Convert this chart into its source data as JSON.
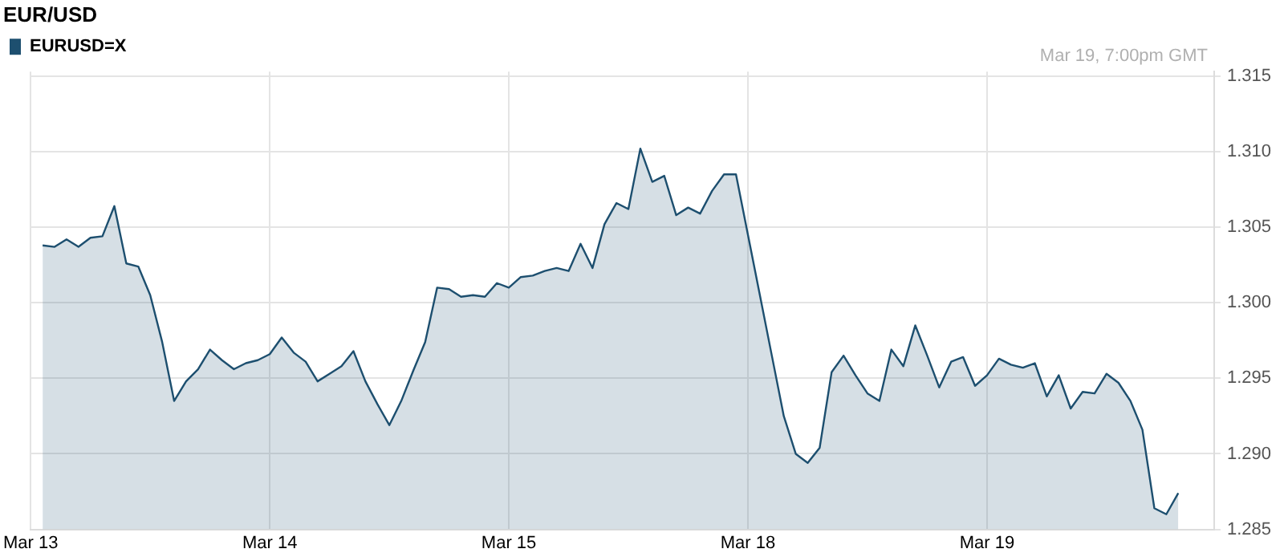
{
  "chart_data": {
    "type": "area",
    "title": "EUR/USD",
    "annotations": [
      "Mar 19, 7:00pm GMT"
    ],
    "legend": "top left",
    "grid": true,
    "marker": "none",
    "categories": [
      "Mar 13",
      null,
      null,
      null,
      null,
      null,
      null,
      null,
      null,
      null,
      null,
      null,
      null,
      null,
      null,
      null,
      null,
      null,
      null,
      null,
      "Mar 14",
      null,
      null,
      null,
      null,
      null,
      null,
      null,
      null,
      null,
      null,
      null,
      null,
      null,
      null,
      null,
      null,
      null,
      null,
      null,
      "Mar 15",
      null,
      null,
      null,
      null,
      null,
      null,
      null,
      null,
      null,
      null,
      null,
      null,
      null,
      null,
      null,
      null,
      null,
      null,
      null,
      "Mar 18",
      null,
      null,
      null,
      null,
      null,
      null,
      null,
      null,
      null,
      null,
      null,
      null,
      null,
      null,
      null,
      null,
      null,
      null,
      null,
      "Mar 19",
      null,
      null,
      null,
      null,
      null,
      null,
      null,
      null,
      null,
      null,
      null,
      null,
      null,
      null,
      null,
      null,
      null,
      null,
      null
    ],
    "ylim": [
      1.285,
      1.3153
    ],
    "yticks": [
      {
        "value": 1.285,
        "label": "1.285"
      },
      {
        "value": 1.29,
        "label": "1.290"
      },
      {
        "value": 1.295,
        "label": "1.295"
      },
      {
        "value": 1.3,
        "label": "1.300"
      },
      {
        "value": 1.305,
        "label": "1.305"
      },
      {
        "value": 1.31,
        "label": "1.310"
      },
      {
        "value": 1.315,
        "label": "1.315"
      }
    ],
    "series": [
      {
        "name": "EURUSD=X",
        "color": "#1d4f6f",
        "values": [
          null,
          1.3038,
          1.3037,
          1.3042,
          1.3037,
          1.3043,
          1.3044,
          1.3064,
          1.3026,
          1.3024,
          1.3005,
          1.2974,
          1.2935,
          1.2948,
          1.2956,
          1.2969,
          1.2962,
          1.2956,
          1.296,
          1.2962,
          1.2966,
          1.2977,
          1.2967,
          1.2961,
          1.2948,
          1.2953,
          1.2958,
          1.2968,
          1.2948,
          1.2933,
          1.2919,
          1.2935,
          1.2955,
          1.2974,
          1.301,
          1.3009,
          1.3004,
          1.3005,
          1.3004,
          1.3013,
          1.301,
          1.3017,
          1.3018,
          1.3021,
          1.3023,
          1.3021,
          1.3039,
          1.3023,
          1.3052,
          1.3066,
          1.3062,
          1.3102,
          1.308,
          1.3084,
          1.3058,
          1.3063,
          1.3059,
          1.3074,
          1.3085,
          1.3085,
          1.3045,
          1.3005,
          1.2965,
          1.2925,
          1.29,
          1.2894,
          1.2904,
          1.2954,
          1.2965,
          1.2952,
          1.294,
          1.2935,
          1.2969,
          1.2958,
          1.2985,
          1.2965,
          1.2944,
          1.2961,
          1.2964,
          1.2945,
          1.2952,
          1.2963,
          1.2959,
          1.2957,
          1.296,
          1.2938,
          1.2952,
          1.293,
          1.2941,
          1.294,
          1.2953,
          1.2947,
          1.2935,
          1.2916,
          1.2864,
          1.286,
          1.2874,
          null,
          null,
          null
        ]
      }
    ]
  }
}
